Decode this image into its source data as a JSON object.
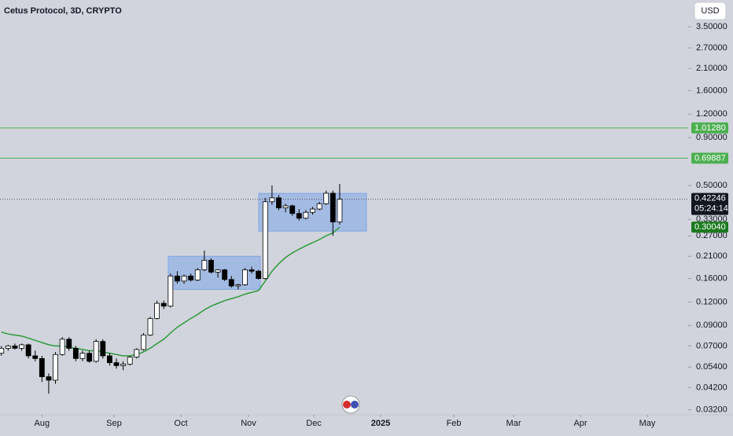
{
  "chart_data": {
    "type": "candlestick",
    "title": "Cetus Protocol, 3D, CRYPTO",
    "currency": "USD",
    "log_scale": true,
    "ylim": [
      0.0301,
      4.86
    ],
    "yticks": [
      {
        "value": 3.5,
        "label": "3.50000"
      },
      {
        "value": 2.7,
        "label": "2.70000"
      },
      {
        "value": 2.1,
        "label": "2.10000"
      },
      {
        "value": 1.6,
        "label": "1.60000"
      },
      {
        "value": 1.2,
        "label": "1.20000"
      },
      {
        "value": 0.9,
        "label": "0.90000"
      },
      {
        "value": 0.5,
        "label": "0.50000"
      },
      {
        "value": 0.33,
        "label": "0.33000"
      },
      {
        "value": 0.27,
        "label": "0.27000"
      },
      {
        "value": 0.21,
        "label": "0.21000"
      },
      {
        "value": 0.16,
        "label": "0.16000"
      },
      {
        "value": 0.12,
        "label": "0.12000"
      },
      {
        "value": 0.09,
        "label": "0.09000"
      },
      {
        "value": 0.07,
        "label": "0.07000"
      },
      {
        "value": 0.054,
        "label": "0.05400"
      },
      {
        "value": 0.042,
        "label": "0.04200"
      },
      {
        "value": 0.032,
        "label": "0.03200"
      }
    ],
    "xlim": [
      -0.2,
      101.5
    ],
    "xticks": [
      {
        "value": 6.0,
        "label": "Aug"
      },
      {
        "value": 16.65,
        "label": "Sep"
      },
      {
        "value": 26.53,
        "label": "Oct"
      },
      {
        "value": 36.53,
        "label": "Nov"
      },
      {
        "value": 46.18,
        "label": "Dec"
      },
      {
        "value": 56.06,
        "label": "2025"
      },
      {
        "value": 66.87,
        "label": "Feb"
      },
      {
        "value": 75.7,
        "label": "Mar"
      },
      {
        "value": 85.58,
        "label": "Apr"
      },
      {
        "value": 95.46,
        "label": "May"
      }
    ],
    "candles": {
      "up_color": "#ffffff",
      "down_color": "#000000",
      "open": [
        0.064,
        0.068,
        0.07,
        0.068,
        0.071,
        0.062,
        0.06,
        0.048,
        0.046,
        0.063,
        0.076,
        0.068,
        0.06,
        0.064,
        0.058,
        0.074,
        0.062,
        0.057,
        0.055,
        0.056,
        0.061,
        0.067,
        0.08,
        0.098,
        0.118,
        0.114,
        0.165,
        0.155,
        0.165,
        0.157,
        0.178,
        0.2,
        0.173,
        0.178,
        0.158,
        0.146,
        0.148,
        0.178,
        0.175,
        0.16,
        0.41,
        0.43,
        0.38,
        0.39,
        0.355,
        0.335,
        0.36,
        0.375,
        0.4,
        0.455,
        0.32
      ],
      "high": [
        0.07,
        0.071,
        0.072,
        0.072,
        0.072,
        0.066,
        0.062,
        0.05,
        0.065,
        0.078,
        0.078,
        0.07,
        0.066,
        0.066,
        0.076,
        0.076,
        0.064,
        0.06,
        0.058,
        0.062,
        0.068,
        0.082,
        0.1,
        0.122,
        0.122,
        0.17,
        0.175,
        0.168,
        0.17,
        0.182,
        0.225,
        0.205,
        0.18,
        0.18,
        0.165,
        0.15,
        0.182,
        0.185,
        0.178,
        0.43,
        0.5,
        0.445,
        0.4,
        0.395,
        0.375,
        0.37,
        0.385,
        0.41,
        0.47,
        0.47,
        0.51
      ],
      "low": [
        0.062,
        0.066,
        0.067,
        0.066,
        0.06,
        0.058,
        0.045,
        0.039,
        0.044,
        0.062,
        0.066,
        0.058,
        0.058,
        0.057,
        0.057,
        0.06,
        0.055,
        0.053,
        0.052,
        0.055,
        0.06,
        0.066,
        0.079,
        0.097,
        0.11,
        0.112,
        0.15,
        0.15,
        0.154,
        0.155,
        0.175,
        0.17,
        0.162,
        0.155,
        0.143,
        0.14,
        0.146,
        0.17,
        0.158,
        0.158,
        0.395,
        0.37,
        0.36,
        0.345,
        0.325,
        0.33,
        0.35,
        0.37,
        0.395,
        0.27,
        0.31
      ],
      "close": [
        0.068,
        0.07,
        0.068,
        0.071,
        0.062,
        0.06,
        0.048,
        0.046,
        0.063,
        0.076,
        0.068,
        0.06,
        0.064,
        0.058,
        0.074,
        0.062,
        0.057,
        0.055,
        0.056,
        0.061,
        0.067,
        0.08,
        0.098,
        0.118,
        0.114,
        0.165,
        0.155,
        0.165,
        0.157,
        0.178,
        0.2,
        0.173,
        0.178,
        0.158,
        0.146,
        0.148,
        0.178,
        0.175,
        0.16,
        0.41,
        0.43,
        0.38,
        0.39,
        0.355,
        0.335,
        0.36,
        0.375,
        0.4,
        0.455,
        0.32,
        0.42246
      ],
      "close_label": "0.42246",
      "countdown": "05:24:14"
    },
    "ema": {
      "color": "#2e9a3c",
      "values": [
        0.083,
        0.081,
        0.08,
        0.079,
        0.077,
        0.075,
        0.073,
        0.071,
        0.07,
        0.07,
        0.069,
        0.068,
        0.067,
        0.066,
        0.066,
        0.065,
        0.064,
        0.063,
        0.062,
        0.062,
        0.063,
        0.065,
        0.068,
        0.072,
        0.076,
        0.082,
        0.088,
        0.093,
        0.098,
        0.103,
        0.109,
        0.114,
        0.118,
        0.122,
        0.125,
        0.128,
        0.132,
        0.135,
        0.138,
        0.155,
        0.175,
        0.192,
        0.207,
        0.219,
        0.229,
        0.239,
        0.248,
        0.258,
        0.27,
        0.28,
        0.3004
      ],
      "value_label": "0.30040"
    },
    "hlines": [
      {
        "value": 1.0128,
        "label": "1.01280",
        "color": "#4caf50"
      },
      {
        "value": 0.69887,
        "label": "0.69887",
        "color": "#4caf50"
      }
    ],
    "zones": [
      {
        "x": [
          24.67,
          38.27
        ],
        "y": [
          0.14,
          0.21
        ],
        "color": "#7ea6e8"
      },
      {
        "x": [
          38.04,
          53.96
        ],
        "y": [
          0.286,
          0.454
        ],
        "color": "#7ea6e8"
      }
    ]
  }
}
